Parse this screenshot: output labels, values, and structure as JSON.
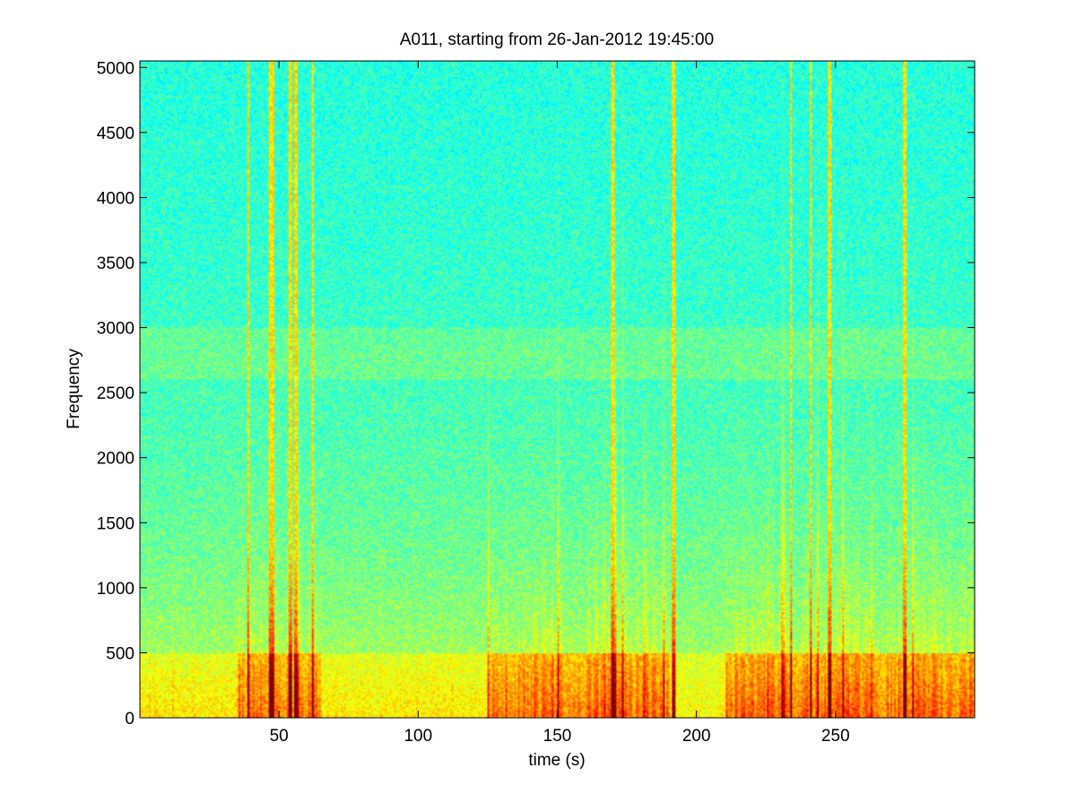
{
  "figure": {
    "background": "#ffffff"
  },
  "chart_data": {
    "type": "heatmap",
    "subtype": "spectrogram",
    "title": "A011, starting from 26-Jan-2012 19:45:00",
    "xlabel": "time (s)",
    "ylabel": "Frequency",
    "xlim": [
      0,
      300
    ],
    "ylim": [
      0,
      5050
    ],
    "xticks": [
      50,
      100,
      150,
      200,
      250
    ],
    "yticks": [
      0,
      500,
      1000,
      1500,
      2000,
      2500,
      3000,
      3500,
      4000,
      4500,
      5000
    ],
    "grid": false,
    "colormap": "jet",
    "colors": {
      "low": "#00bfff",
      "background_high_freq": "#1fe8d8",
      "mid": "#7ff07f",
      "high": "#ffff00",
      "max": "#d80000"
    },
    "features": {
      "broadband_band_hz": [
        2600,
        3000
      ],
      "low_frequency_energy_max_hz": 500,
      "active_periods_s": [
        [
          35,
          65
        ],
        [
          125,
          190
        ],
        [
          210,
          300
        ]
      ],
      "quiet_period_s": [
        193,
        208
      ],
      "transient_lines_s": [
        39,
        47,
        48,
        54,
        56,
        62,
        170,
        192,
        234,
        241,
        248,
        275
      ]
    }
  }
}
